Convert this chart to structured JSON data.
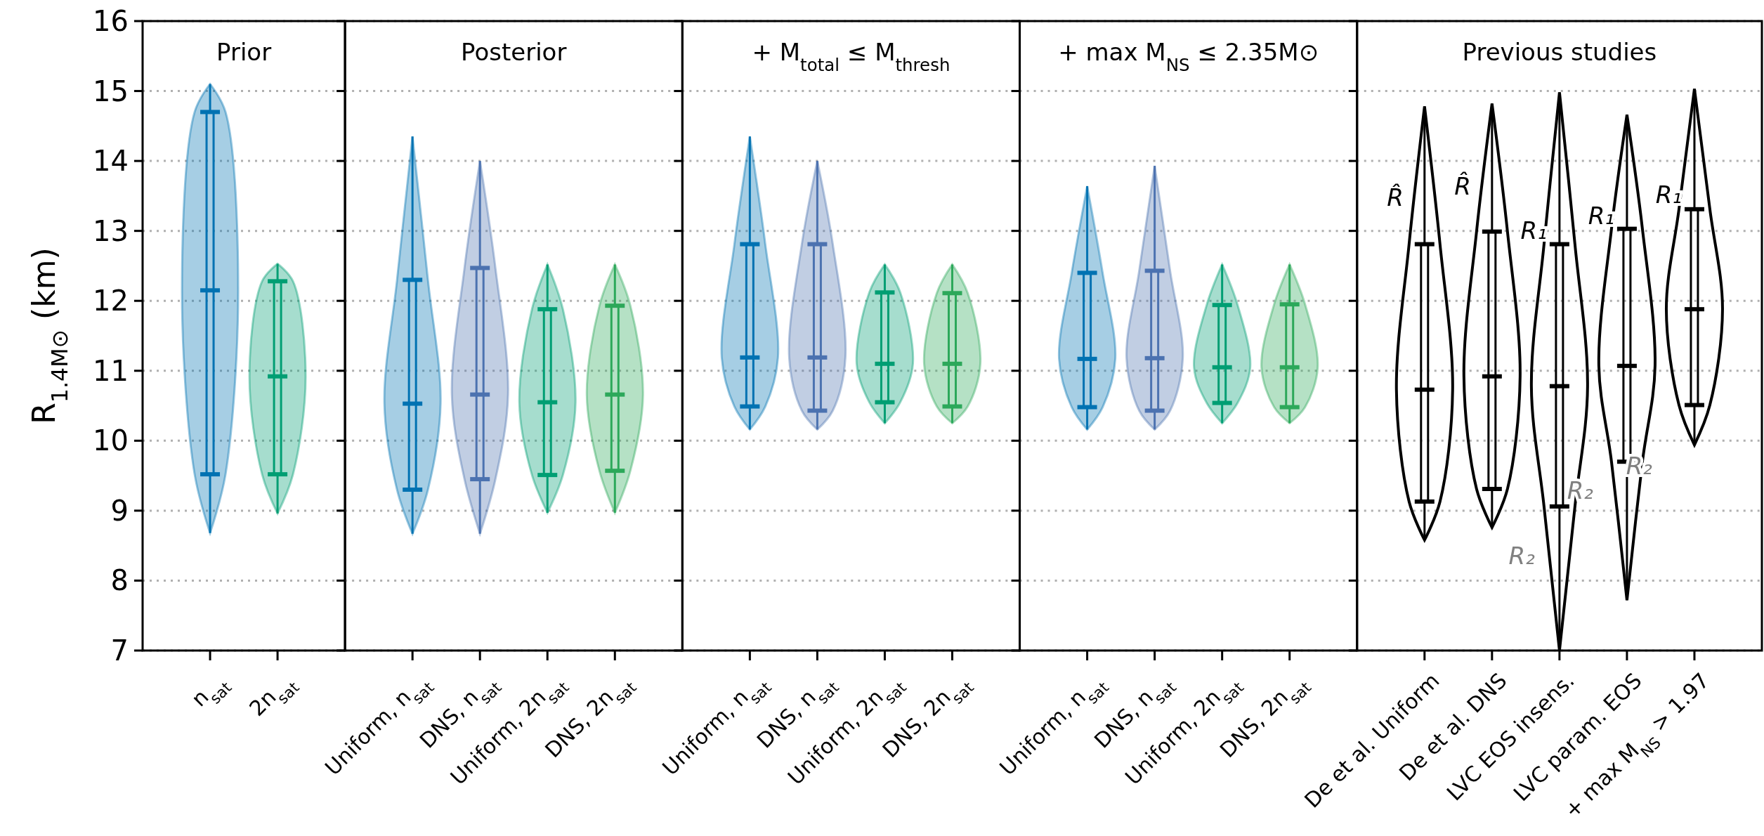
{
  "chart_data": [
    {
      "type": "box",
      "title": "Prior",
      "ylabel": "R$_{1.4M⊙}$ (km)",
      "categories": [
        "n$_{sat}$",
        "2n$_{sat}$"
      ],
      "colors": [
        "#0072b2",
        "#009e73"
      ],
      "ylim": [
        7,
        16
      ],
      "yticks": [
        7,
        8,
        9,
        10,
        11,
        12,
        13,
        14,
        15,
        16
      ],
      "grid": "y",
      "boxes": [
        {
          "low": 8.68,
          "q1": 9.52,
          "median": 12.15,
          "q3": 14.7,
          "high": 15.1
        },
        {
          "low": 8.96,
          "q1": 9.52,
          "median": 10.92,
          "q3": 12.28,
          "high": 12.53
        }
      ]
    },
    {
      "type": "box",
      "title": "Posterior",
      "categories": [
        "Uniform, n$_{sat}$",
        "DNS, n$_{sat}$",
        "Uniform, 2n$_{sat}$",
        "DNS, 2n$_{sat}$"
      ],
      "colors": [
        "#0072b2",
        "#4c72b0",
        "#009e73",
        "#2ca85a"
      ],
      "ylim": [
        7,
        16
      ],
      "yticks": [
        7,
        8,
        9,
        10,
        11,
        12,
        13,
        14,
        15,
        16
      ],
      "grid": "y",
      "tick_labels": "x",
      "boxes": [
        {
          "low": 8.67,
          "q1": 9.3,
          "median": 10.53,
          "q3": 12.3,
          "high": 14.35
        },
        {
          "low": 8.67,
          "q1": 9.45,
          "median": 10.66,
          "q3": 12.47,
          "high": 14.0
        },
        {
          "low": 8.97,
          "q1": 9.51,
          "median": 10.55,
          "q3": 11.88,
          "high": 12.52
        },
        {
          "low": 8.97,
          "q1": 9.57,
          "median": 10.66,
          "q3": 11.93,
          "high": 12.52
        }
      ]
    },
    {
      "type": "box",
      "title": "+ M$_{total}$ ≤ M$_{thresh}$",
      "categories": [
        "Uniform, n$_{sat}$",
        "DNS, n$_{sat}$",
        "Uniform, 2n$_{sat}$",
        "DNS, 2n$_{sat}$"
      ],
      "colors": [
        "#0072b2",
        "#4c72b0",
        "#009e73",
        "#2ca85a"
      ],
      "ylim": [
        7,
        16
      ],
      "yticks": [
        7,
        8,
        9,
        10,
        11,
        12,
        13,
        14,
        15,
        16
      ],
      "grid": "y",
      "tick_labels": "x",
      "boxes": [
        {
          "low": 10.16,
          "q1": 10.49,
          "median": 11.19,
          "q3": 12.81,
          "high": 14.35
        },
        {
          "low": 10.16,
          "q1": 10.43,
          "median": 11.19,
          "q3": 12.81,
          "high": 14.0
        },
        {
          "low": 10.25,
          "q1": 10.55,
          "median": 11.1,
          "q3": 12.12,
          "high": 12.52
        },
        {
          "low": 10.25,
          "q1": 10.49,
          "median": 11.1,
          "q3": 12.11,
          "high": 12.52
        }
      ]
    },
    {
      "type": "box",
      "title": "+ max M$_{NS}$ ≤ 2.35M⊙",
      "categories": [
        "Uniform, n$_{sat}$",
        "DNS, n$_{sat}$",
        "Uniform, 2n$_{sat}$",
        "DNS, 2n$_{sat}$"
      ],
      "colors": [
        "#0072b2",
        "#4c72b0",
        "#009e73",
        "#2ca85a"
      ],
      "ylim": [
        7,
        16
      ],
      "yticks": [
        7,
        8,
        9,
        10,
        11,
        12,
        13,
        14,
        15,
        16
      ],
      "grid": "y",
      "tick_labels": "x",
      "boxes": [
        {
          "low": 10.16,
          "q1": 10.48,
          "median": 11.17,
          "q3": 12.4,
          "high": 13.64
        },
        {
          "low": 10.16,
          "q1": 10.43,
          "median": 11.18,
          "q3": 12.43,
          "high": 13.93
        },
        {
          "low": 10.25,
          "q1": 10.54,
          "median": 11.05,
          "q3": 11.94,
          "high": 12.52
        },
        {
          "low": 10.25,
          "q1": 10.48,
          "median": 11.05,
          "q3": 11.95,
          "high": 12.52
        }
      ]
    },
    {
      "type": "box",
      "title": "Previous studies",
      "categories": [
        "De et al. Uniform",
        "De et al. DNS",
        "LVC EOS insens.",
        "LVC param. EOS",
        "+ max M$_{NS}$ > 1.97"
      ],
      "colors": [
        "#000000",
        "#000000",
        "#000000",
        "#000000",
        "#000000"
      ],
      "ylim": [
        7,
        16
      ],
      "yticks": [
        7,
        8,
        9,
        10,
        11,
        12,
        13,
        14,
        15,
        16
      ],
      "grid": "y",
      "tick_labels": "x",
      "boxes": [
        {
          "low": 8.58,
          "q1": 9.13,
          "median": 10.73,
          "q3": 12.81,
          "high": 14.78
        },
        {
          "low": 8.76,
          "q1": 9.31,
          "median": 10.92,
          "q3": 12.99,
          "high": 14.82
        },
        {
          "low": 7.0,
          "q1": 9.06,
          "median": 10.78,
          "q3": 12.81,
          "high": 14.98
        },
        {
          "low": 7.72,
          "q1": 9.7,
          "median": 11.07,
          "q3": 13.03,
          "high": 14.66
        },
        {
          "low": 9.94,
          "q1": 10.51,
          "median": 11.88,
          "q3": 13.31,
          "high": 15.03
        }
      ],
      "annotations": [
        "R̂",
        "R̂",
        "R₁",
        "R₂",
        "R₁",
        "R₂",
        "R₁",
        "R₂"
      ]
    }
  ]
}
